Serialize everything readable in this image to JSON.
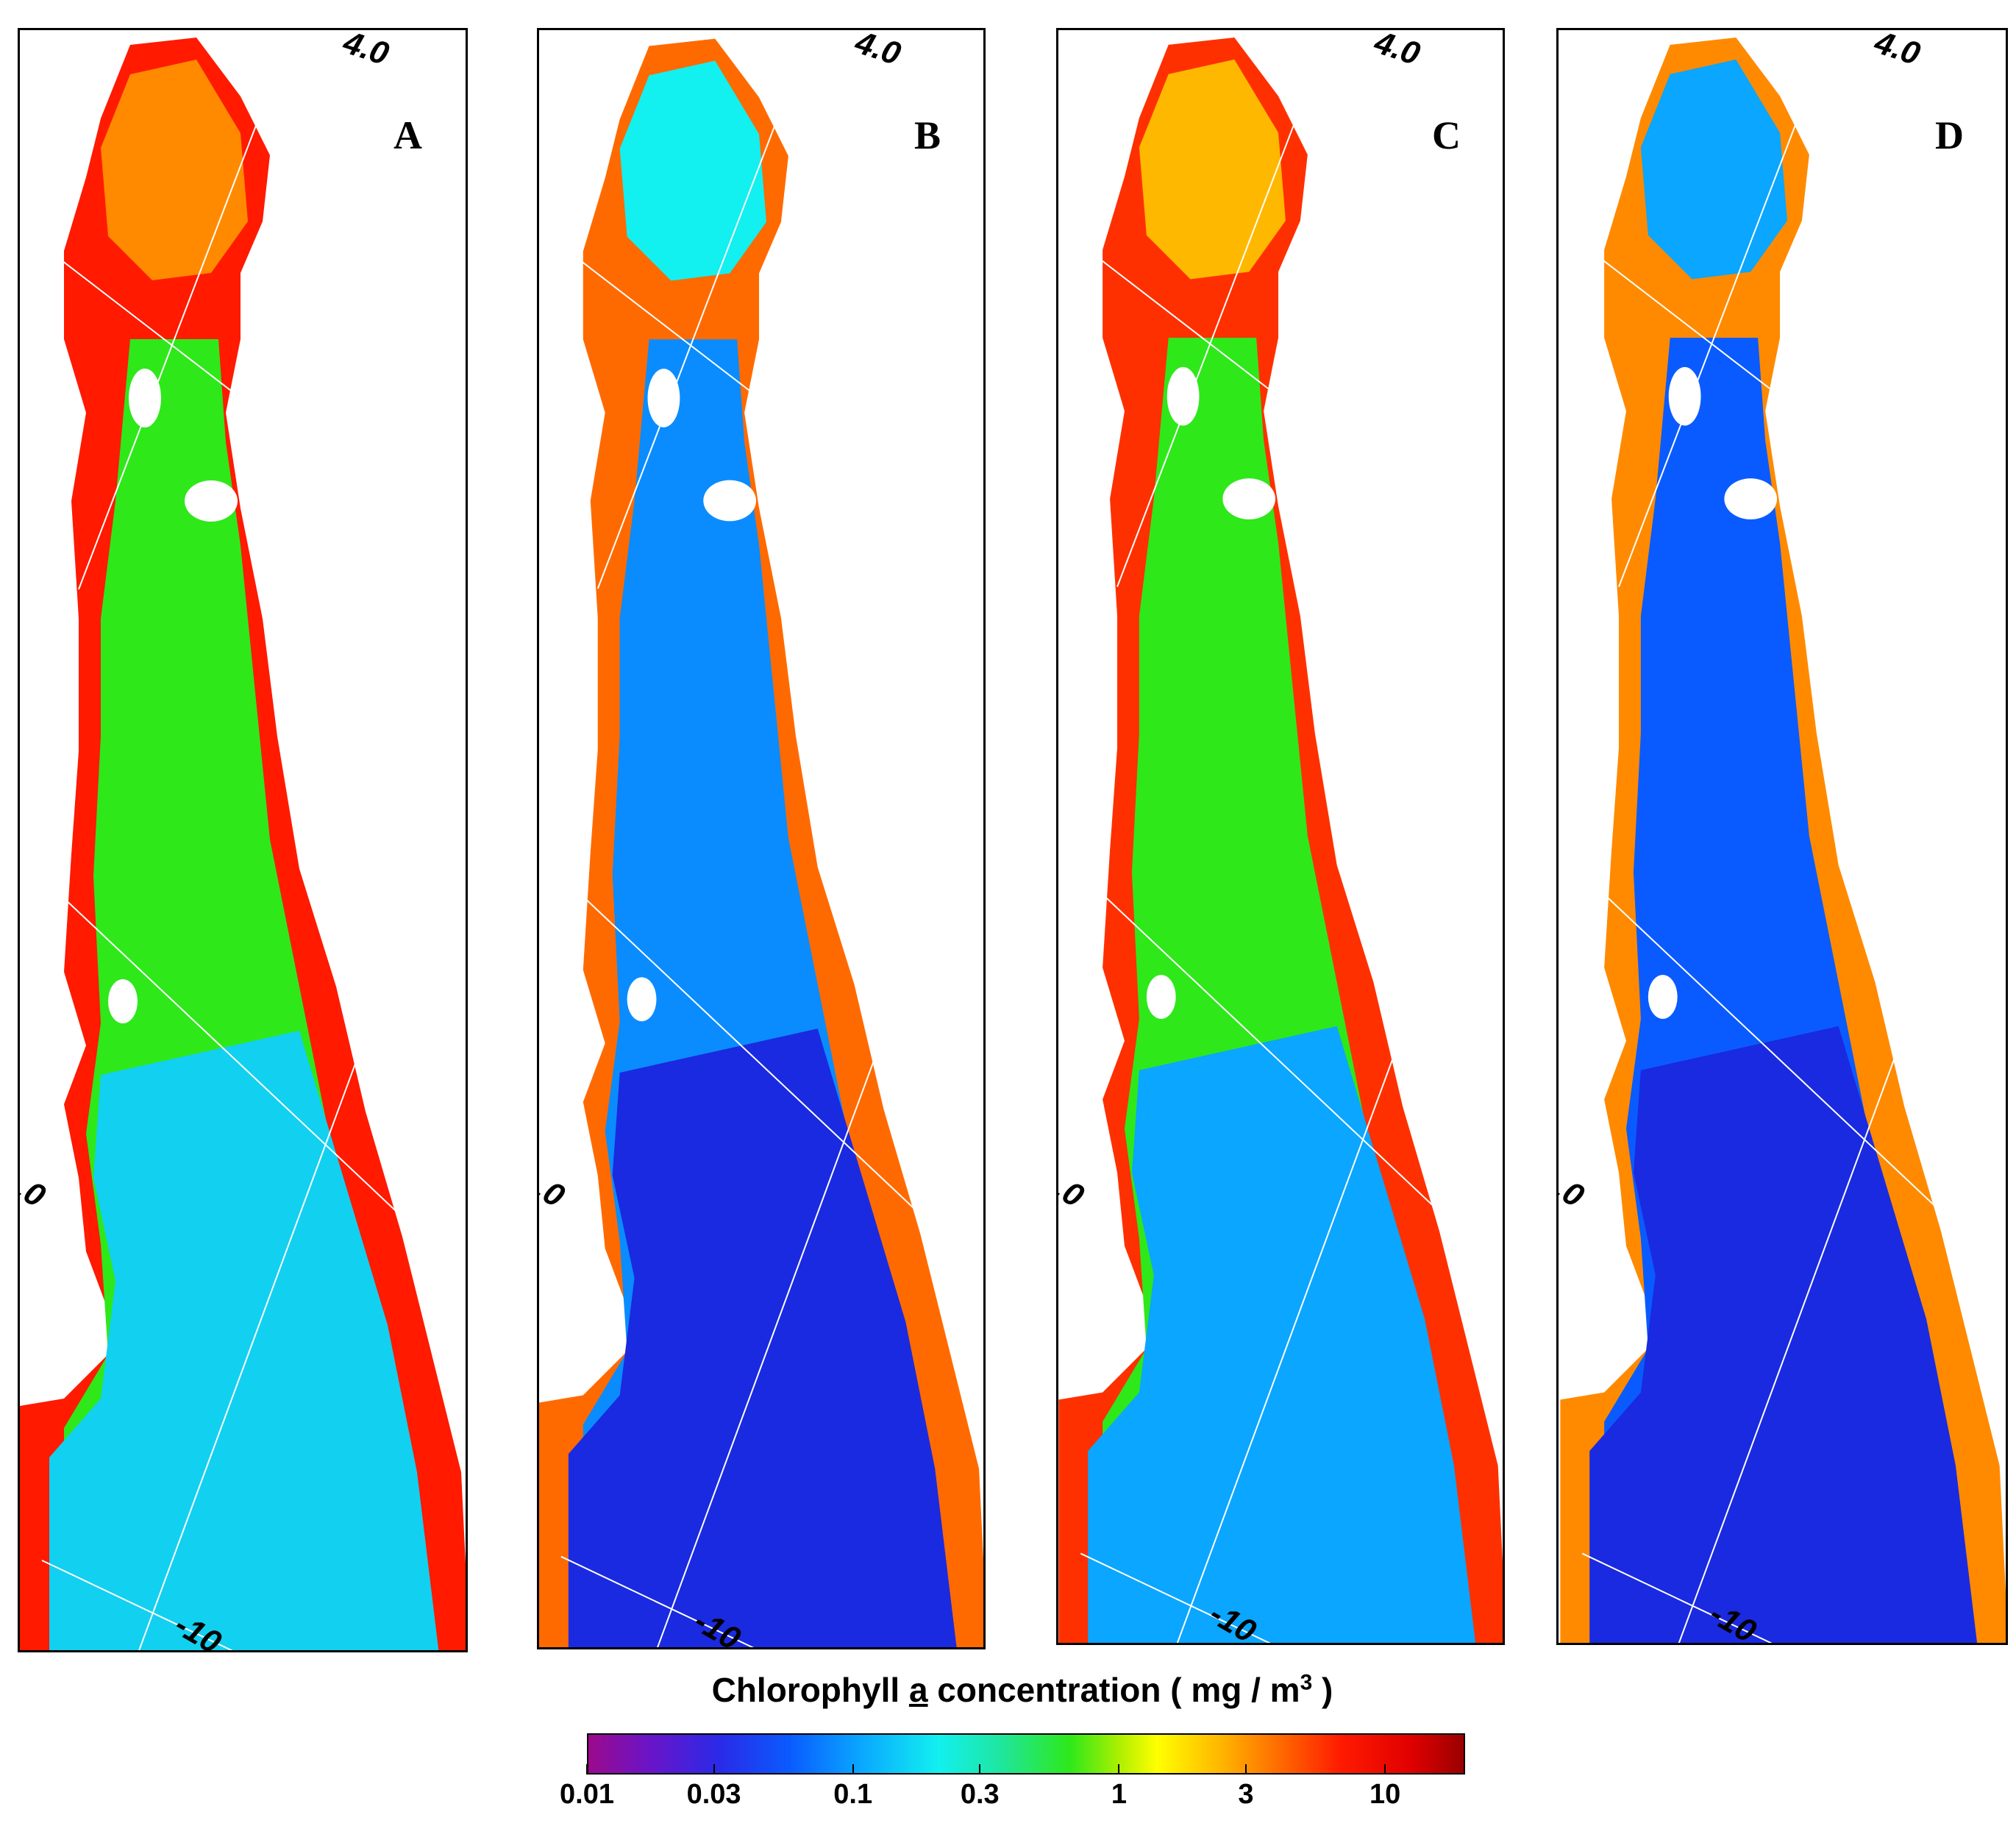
{
  "panels": [
    {
      "letter": "A",
      "lat_label": "4.0",
      "lon_label": "-10",
      "corner_label": ".0"
    },
    {
      "letter": "B",
      "lat_label": "4.0",
      "lon_label": "-10",
      "corner_label": ".0"
    },
    {
      "letter": "C",
      "lat_label": "4.0",
      "lon_label": "-10",
      "corner_label": ".0"
    },
    {
      "letter": "D",
      "lat_label": "4.0",
      "lon_label": "-10",
      "corner_label": ".0"
    }
  ],
  "panel_palettes": {
    "A": {
      "edge": "#ff1a00",
      "mid": "#ff8a00",
      "core": "#2ee81a",
      "deep": "#12d0f0"
    },
    "B": {
      "edge": "#ff6a00",
      "mid": "#12f0f0",
      "core": "#0a8cff",
      "deep": "#1a2ae0"
    },
    "C": {
      "edge": "#ff3000",
      "mid": "#ffb800",
      "core": "#2ee81a",
      "deep": "#0aa6ff"
    },
    "D": {
      "edge": "#ff8a00",
      "mid": "#0aa6ff",
      "core": "#0a5bff",
      "deep": "#1a2ae0"
    }
  },
  "colorbar": {
    "title_prefix": "Chlorophyll ",
    "title_underlined": "a",
    "title_middle": " concentration ( mg / m",
    "title_sup": "3",
    "title_suffix": " )",
    "scale": "log",
    "range": [
      0.01,
      20
    ],
    "ticks": [
      {
        "label": "0.01",
        "value": 0.01
      },
      {
        "label": "0.03",
        "value": 0.03
      },
      {
        "label": "0.1",
        "value": 0.1
      },
      {
        "label": "0.3",
        "value": 0.3
      },
      {
        "label": "1",
        "value": 1
      },
      {
        "label": "3",
        "value": 3
      },
      {
        "label": "10",
        "value": 10
      }
    ]
  }
}
